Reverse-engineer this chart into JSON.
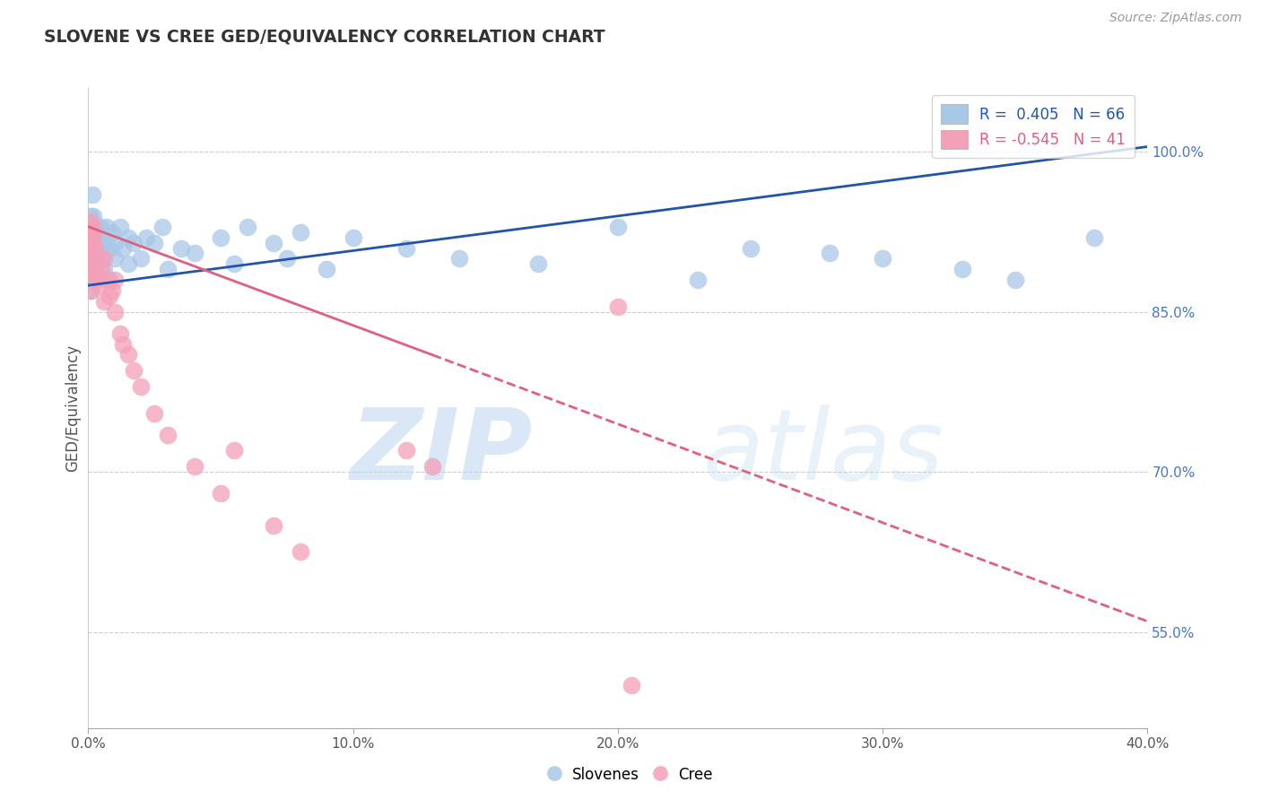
{
  "title": "SLOVENE VS CREE GED/EQUIVALENCY CORRELATION CHART",
  "source_text": "Source: ZipAtlas.com",
  "ylabel": "GED/Equivalency",
  "right_ytick_vals": [
    55.0,
    70.0,
    85.0,
    100.0
  ],
  "legend_blue_label": "R =  0.405   N = 66",
  "legend_pink_label": "R = -0.545   N = 41",
  "legend_blue_label2": "Slovenes",
  "legend_pink_label2": "Cree",
  "blue_color": "#a8c8e8",
  "pink_color": "#f4a0b8",
  "blue_line_color": "#2255aa",
  "pink_line_color": "#e06080",
  "x_min": 0.0,
  "x_max": 40.0,
  "y_min": 46.0,
  "y_max": 106.0,
  "blue_line_x0": 0.0,
  "blue_line_y0": 87.5,
  "blue_line_x1": 40.0,
  "blue_line_y1": 100.5,
  "pink_line_x0": 0.0,
  "pink_line_y0": 93.0,
  "pink_line_x1": 40.0,
  "pink_line_y1": 56.0,
  "pink_solid_end": 13.0,
  "blue_scatter_x": [
    0.05,
    0.05,
    0.07,
    0.08,
    0.1,
    0.1,
    0.1,
    0.12,
    0.15,
    0.15,
    0.18,
    0.18,
    0.2,
    0.2,
    0.2,
    0.25,
    0.25,
    0.3,
    0.3,
    0.3,
    0.35,
    0.35,
    0.4,
    0.4,
    0.45,
    0.5,
    0.5,
    0.6,
    0.6,
    0.7,
    0.8,
    0.8,
    0.9,
    1.0,
    1.0,
    1.2,
    1.3,
    1.5,
    1.5,
    1.7,
    2.0,
    2.2,
    2.5,
    2.8,
    3.0,
    3.5,
    4.0,
    5.0,
    5.5,
    6.0,
    7.0,
    7.5,
    8.0,
    9.0,
    10.0,
    12.0,
    14.0,
    17.0,
    20.0,
    23.0,
    25.0,
    28.0,
    30.0,
    33.0,
    35.0,
    38.0
  ],
  "blue_scatter_y": [
    93.0,
    90.0,
    92.0,
    88.5,
    91.0,
    94.0,
    87.0,
    93.0,
    90.0,
    96.0,
    89.0,
    92.0,
    94.0,
    91.0,
    88.0,
    92.5,
    89.5,
    93.0,
    91.0,
    88.0,
    92.0,
    90.0,
    91.0,
    88.5,
    93.0,
    92.0,
    90.0,
    91.5,
    89.0,
    93.0,
    91.0,
    88.0,
    92.5,
    90.0,
    91.5,
    93.0,
    91.0,
    92.0,
    89.5,
    91.5,
    90.0,
    92.0,
    91.5,
    93.0,
    89.0,
    91.0,
    90.5,
    92.0,
    89.5,
    93.0,
    91.5,
    90.0,
    92.5,
    89.0,
    92.0,
    91.0,
    90.0,
    89.5,
    93.0,
    88.0,
    91.0,
    90.5,
    90.0,
    89.0,
    88.0,
    92.0
  ],
  "pink_scatter_x": [
    0.05,
    0.05,
    0.07,
    0.08,
    0.1,
    0.1,
    0.1,
    0.12,
    0.15,
    0.15,
    0.18,
    0.2,
    0.2,
    0.25,
    0.3,
    0.35,
    0.4,
    0.5,
    0.6,
    0.6,
    0.7,
    0.8,
    0.9,
    1.0,
    1.0,
    1.2,
    1.3,
    1.5,
    1.7,
    2.0,
    2.5,
    3.0,
    4.0,
    5.0,
    5.5,
    7.0,
    8.0,
    12.0,
    13.0,
    20.5,
    20.0
  ],
  "pink_scatter_y": [
    91.0,
    93.0,
    89.0,
    92.0,
    90.5,
    93.5,
    87.0,
    91.5,
    89.0,
    93.0,
    88.0,
    92.0,
    90.0,
    91.0,
    88.5,
    90.0,
    87.5,
    89.0,
    86.0,
    90.0,
    88.0,
    86.5,
    87.0,
    85.0,
    88.0,
    83.0,
    82.0,
    81.0,
    79.5,
    78.0,
    75.5,
    73.5,
    70.5,
    68.0,
    72.0,
    65.0,
    62.5,
    72.0,
    70.5,
    50.0,
    85.5
  ]
}
